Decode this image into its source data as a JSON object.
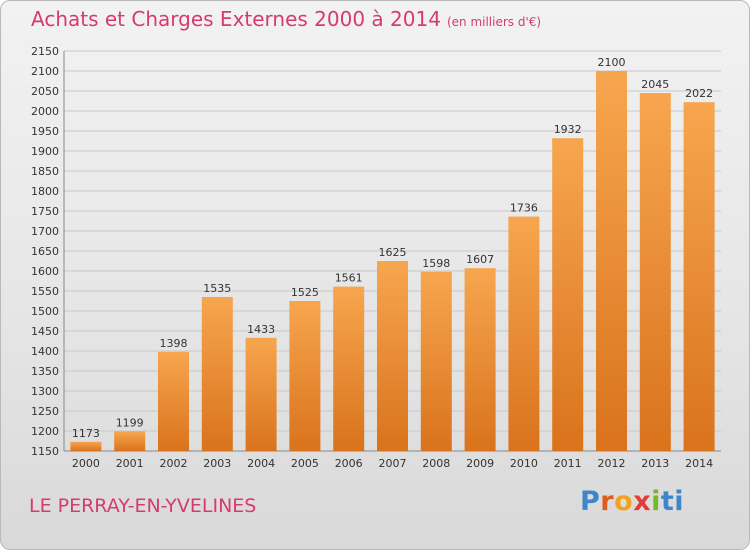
{
  "header": {
    "title": "Achats et Charges Externes 2000 à 2014",
    "unit_note": "(en milliers d'€)"
  },
  "footer": {
    "commune": "LE PERRAY-EN-YVELINES",
    "logo_letters": [
      "P",
      "r",
      "o",
      "x",
      "i",
      "ti"
    ]
  },
  "colors": {
    "title": "#d63b6e",
    "bar_light": "#f7a64f",
    "bar_dark": "#d9731c",
    "grid": "#c8c8c8"
  },
  "chart_data": {
    "type": "bar",
    "title": "Achats et Charges Externes 2000 à 2014",
    "categories": [
      "2000",
      "2001",
      "2002",
      "2003",
      "2004",
      "2005",
      "2006",
      "2007",
      "2008",
      "2009",
      "2010",
      "2011",
      "2012",
      "2013",
      "2014"
    ],
    "values": [
      1173,
      1199,
      1398,
      1535,
      1433,
      1525,
      1561,
      1625,
      1598,
      1607,
      1736,
      1932,
      2100,
      2045,
      2022
    ],
    "ylim": [
      1150,
      2150
    ],
    "ytick_step": 50,
    "xlabel": "",
    "ylabel": "",
    "grid": true,
    "data_labels": true
  }
}
